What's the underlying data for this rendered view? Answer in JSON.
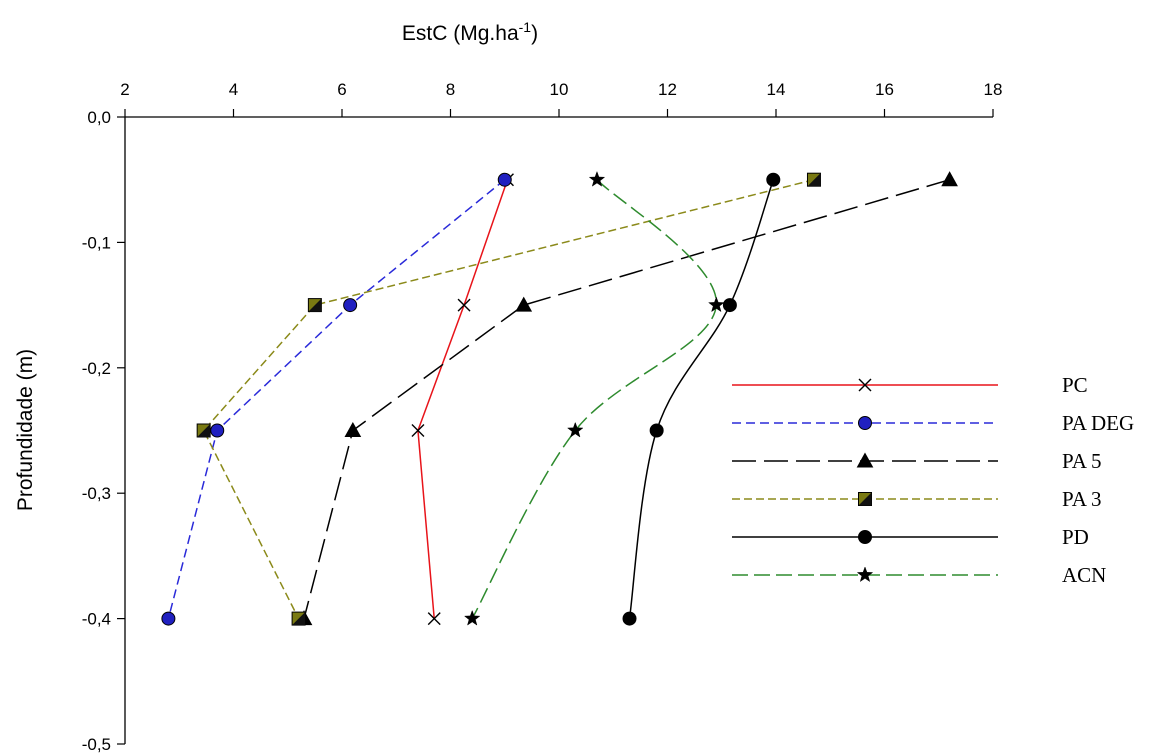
{
  "chart_data": {
    "type": "line",
    "xlabel": "EstC (Mg.ha",
    "xlabel_sup": "-1",
    "xlabel_suffix": ")",
    "ylabel": "Profundidade (m)",
    "xlim": [
      2,
      18
    ],
    "ylim": [
      -0.5,
      0.0
    ],
    "x_axis_position": "top",
    "x_ticks": [
      2,
      4,
      6,
      8,
      10,
      12,
      14,
      16,
      18
    ],
    "x_tick_labels": [
      "2",
      "4",
      "6",
      "8",
      "10",
      "12",
      "14",
      "16",
      "18"
    ],
    "y_ticks": [
      0.0,
      -0.1,
      -0.2,
      -0.3,
      -0.4,
      -0.5
    ],
    "y_tick_labels": [
      "0,0",
      "-0,1",
      "-0,2",
      "-0,3",
      "-0,4",
      "-0,5"
    ],
    "grid": false,
    "legend_position": "right",
    "depths": [
      -0.05,
      -0.15,
      -0.25,
      -0.4
    ],
    "series": [
      {
        "name": "PC",
        "values": [
          9.05,
          8.25,
          7.4,
          7.7
        ],
        "color": "#e8141a",
        "dash": "",
        "marker": "x",
        "markerFill": "#000000"
      },
      {
        "name": "PA DEG",
        "values": [
          9.0,
          6.15,
          3.7,
          2.8
        ],
        "color": "#2a2ad9",
        "dash": "9 5",
        "marker": "circle",
        "markerFill": "#2020c0"
      },
      {
        "name": "PA 5",
        "values": [
          17.2,
          9.35,
          6.2,
          5.3
        ],
        "color": "#000000",
        "dash": "24 8",
        "marker": "triangle",
        "markerFill": "#000000"
      },
      {
        "name": "PA 3",
        "values": [
          14.7,
          5.5,
          3.45,
          5.2
        ],
        "color": "#8b8a1a",
        "dash": "8 4",
        "marker": "square",
        "markerFill": "#7a7a12"
      },
      {
        "name": "PD",
        "values": [
          13.95,
          13.15,
          11.8,
          11.3
        ],
        "color": "#000000",
        "dash": "",
        "marker": "circle",
        "markerFill": "#000000"
      },
      {
        "name": "ACN",
        "values": [
          10.7,
          12.9,
          10.3,
          8.4
        ],
        "color": "#2e8b2e",
        "dash": "16 6",
        "marker": "star",
        "markerFill": "#000000"
      }
    ]
  }
}
